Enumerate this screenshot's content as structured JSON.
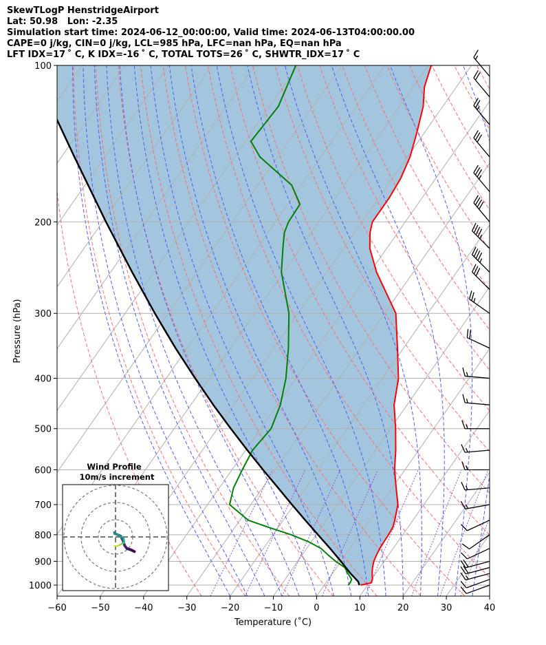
{
  "header": {
    "line1": "SkewTLogP HenstridgeAirport",
    "line2": "Lat: 50.98   Lon: -2.35",
    "line3": "Simulation start time: 2024-06-12_00:00:00, Valid time: 2024-06-13T04:00:00.00",
    "line4": "CAPE=0 j/kg, CIN=0 j/kg, LCL=985 hPa, LFC=nan hPa, EQ=nan hPa",
    "line5": "LFT IDX=17 ˚ C, K IDX=-16 ˚ C, TOTAL TOTS=26 ˚ C, SHWTR_IDX=17 ˚ C"
  },
  "colors": {
    "temperature": "#ff0000",
    "dewpoint": "#008000",
    "parcel": "#000000",
    "cape_fill": "#a3c6de",
    "dry_adiabat": "#ff6b6b",
    "moist_adiabat": "#4a5cff",
    "mixing_ratio": "#9b4fd6",
    "isotherm": "#b0b0b0",
    "grid": "#b0b0b0"
  },
  "chart_data": {
    "type": "skewt",
    "xlabel": "Temperature (˚C)",
    "ylabel": "Pressure (hPa)",
    "xlim": [
      -60,
      40
    ],
    "ylim": [
      1050,
      100
    ],
    "xticks": [
      -60,
      -50,
      -40,
      -30,
      -20,
      -10,
      0,
      10,
      20,
      30,
      40
    ],
    "xtick_labels": [
      "−60",
      "−50",
      "−40",
      "−30",
      "−20",
      "−10",
      "0",
      "10",
      "20",
      "30",
      "40"
    ],
    "yticks": [
      1000,
      900,
      800,
      700,
      600,
      500,
      400,
      300,
      200,
      100
    ],
    "ytick_labels": [
      "1000",
      "900",
      "800",
      "700",
      "600",
      "500",
      "400",
      "300",
      "200",
      "100"
    ],
    "series": [
      {
        "name": "temperature",
        "points": [
          [
            1000,
            8.4
          ],
          [
            990,
            10.5
          ],
          [
            975,
            10.2
          ],
          [
            950,
            9.2
          ],
          [
            925,
            8.3
          ],
          [
            900,
            7.6
          ],
          [
            875,
            7.2
          ],
          [
            850,
            6.9
          ],
          [
            825,
            6.8
          ],
          [
            800,
            6.7
          ],
          [
            775,
            6.5
          ],
          [
            750,
            5.8
          ],
          [
            700,
            4.0
          ],
          [
            650,
            0.9
          ],
          [
            600,
            -2.4
          ],
          [
            550,
            -5.3
          ],
          [
            500,
            -8.8
          ],
          [
            450,
            -13.0
          ],
          [
            400,
            -16.3
          ],
          [
            350,
            -21.4
          ],
          [
            300,
            -27.4
          ],
          [
            250,
            -38.5
          ],
          [
            225,
            -43.9
          ],
          [
            210,
            -46.4
          ],
          [
            200,
            -47.6
          ],
          [
            180,
            -47.6
          ],
          [
            165,
            -48.1
          ],
          [
            150,
            -49.4
          ],
          [
            135,
            -51.7
          ],
          [
            120,
            -54.5
          ],
          [
            110,
            -57.4
          ],
          [
            100,
            -59.3
          ]
        ]
      },
      {
        "name": "dewpoint",
        "points": [
          [
            1000,
            5.5
          ],
          [
            990,
            5.6
          ],
          [
            975,
            5.4
          ],
          [
            950,
            3.6
          ],
          [
            925,
            1.9
          ],
          [
            900,
            -1.2
          ],
          [
            875,
            -4.0
          ],
          [
            850,
            -6.7
          ],
          [
            825,
            -10.7
          ],
          [
            800,
            -15.8
          ],
          [
            775,
            -22.0
          ],
          [
            750,
            -28.1
          ],
          [
            700,
            -34.9
          ],
          [
            650,
            -36.7
          ],
          [
            600,
            -37.6
          ],
          [
            550,
            -38.4
          ],
          [
            500,
            -37.6
          ],
          [
            450,
            -39.3
          ],
          [
            400,
            -42.3
          ],
          [
            350,
            -46.6
          ],
          [
            300,
            -52.1
          ],
          [
            250,
            -60.5
          ],
          [
            225,
            -64.0
          ],
          [
            210,
            -66.2
          ],
          [
            200,
            -67.0
          ],
          [
            185,
            -67.2
          ],
          [
            170,
            -72.2
          ],
          [
            150,
            -84.1
          ],
          [
            140,
            -88.7
          ],
          [
            120,
            -88.0
          ],
          [
            100,
            -90.6
          ]
        ]
      },
      {
        "name": "parcel",
        "points": [
          [
            1000,
            8.1
          ],
          [
            985,
            7.3
          ],
          [
            950,
            4.2
          ],
          [
            900,
            0.0
          ],
          [
            850,
            -4.6
          ],
          [
            800,
            -9.6
          ],
          [
            750,
            -14.9
          ],
          [
            700,
            -20.5
          ],
          [
            650,
            -26.4
          ],
          [
            600,
            -32.8
          ],
          [
            550,
            -39.6
          ],
          [
            500,
            -46.9
          ],
          [
            450,
            -54.8
          ],
          [
            400,
            -63.3
          ],
          [
            350,
            -72.7
          ],
          [
            300,
            -83.1
          ],
          [
            250,
            -95.0
          ],
          [
            200,
            -109.2
          ],
          [
            150,
            -127.0
          ],
          [
            100,
            -151.7
          ]
        ]
      }
    ],
    "wind_barbs": [
      {
        "p": 1000,
        "dir": 250,
        "speed_kt": 10
      },
      {
        "p": 975,
        "dir": 250,
        "speed_kt": 12
      },
      {
        "p": 950,
        "dir": 255,
        "speed_kt": 15
      },
      {
        "p": 925,
        "dir": 255,
        "speed_kt": 18
      },
      {
        "p": 900,
        "dir": 255,
        "speed_kt": 18
      },
      {
        "p": 850,
        "dir": 245,
        "speed_kt": 12
      },
      {
        "p": 800,
        "dir": 235,
        "speed_kt": 10
      },
      {
        "p": 750,
        "dir": 245,
        "speed_kt": 12
      },
      {
        "p": 700,
        "dir": 260,
        "speed_kt": 15
      },
      {
        "p": 650,
        "dir": 265,
        "speed_kt": 15
      },
      {
        "p": 600,
        "dir": 270,
        "speed_kt": 15
      },
      {
        "p": 550,
        "dir": 265,
        "speed_kt": 15
      },
      {
        "p": 500,
        "dir": 270,
        "speed_kt": 15
      },
      {
        "p": 450,
        "dir": 275,
        "speed_kt": 15
      },
      {
        "p": 400,
        "dir": 275,
        "speed_kt": 15
      },
      {
        "p": 350,
        "dir": 295,
        "speed_kt": 20
      },
      {
        "p": 300,
        "dir": 305,
        "speed_kt": 25
      },
      {
        "p": 270,
        "dir": 315,
        "speed_kt": 30
      },
      {
        "p": 250,
        "dir": 315,
        "speed_kt": 45
      },
      {
        "p": 225,
        "dir": 315,
        "speed_kt": 45
      },
      {
        "p": 200,
        "dir": 320,
        "speed_kt": 40
      },
      {
        "p": 175,
        "dir": 320,
        "speed_kt": 35
      },
      {
        "p": 150,
        "dir": 320,
        "speed_kt": 30
      },
      {
        "p": 130,
        "dir": 320,
        "speed_kt": 25
      },
      {
        "p": 115,
        "dir": 320,
        "speed_kt": 20
      },
      {
        "p": 105,
        "dir": 320,
        "speed_kt": 15
      }
    ],
    "hodograph": {
      "title": "Wind Profile",
      "subtitle": "10m/s increment",
      "ring_increment_ms": 10,
      "rings": 3,
      "u": [
        11.0,
        9.2,
        6.6,
        5.3,
        4.5,
        3.7,
        3.0,
        2.0,
        0.5,
        -0.3,
        -0.7,
        -0.6,
        0.0,
        1.0,
        3.0,
        4.5,
        5.0,
        5.1,
        4.2,
        4.0,
        3.6,
        2.8,
        1.8,
        0.9,
        0.1,
        -0.6
      ],
      "v": [
        -8.5,
        -7.6,
        -6.7,
        -5.0,
        -2.5,
        -1.0,
        0.5,
        1.0,
        1.6,
        2.1,
        2.6,
        1.9,
        1.7,
        1.2,
        0.1,
        -0.3,
        -2.5,
        -3.3,
        -3.7,
        -3.8,
        -4.0,
        -4.5,
        -5.0,
        -5.4,
        -5.3,
        -5.3
      ]
    }
  }
}
